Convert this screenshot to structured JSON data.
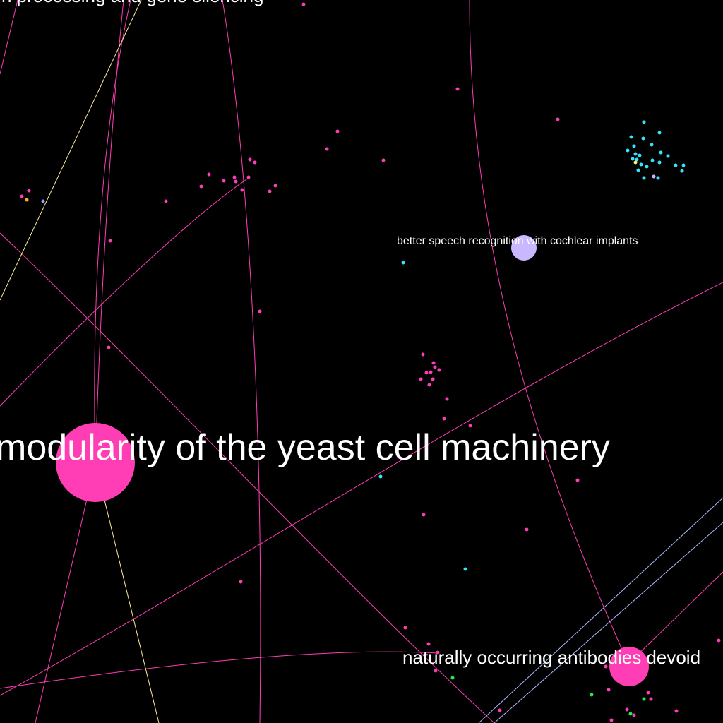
{
  "graph": {
    "background": "#000000",
    "colors": {
      "pink": "#ff3db4",
      "lavender": "#c9b8ff",
      "cyan": "#33e6ff",
      "green": "#22ee44",
      "orange": "#ffaa33",
      "blue": "#88aaff",
      "yellow": "#ffee66",
      "pale_yellow": "#ffee99",
      "pale_blue": "#aabbff"
    },
    "labels": {
      "top_cut": "n processing and gene silencing",
      "yeast": "modularity of the yeast cell machinery",
      "speech": "better speech recognition with cochlear implants",
      "antibodies": "naturally occurring antibodies devoid"
    }
  }
}
